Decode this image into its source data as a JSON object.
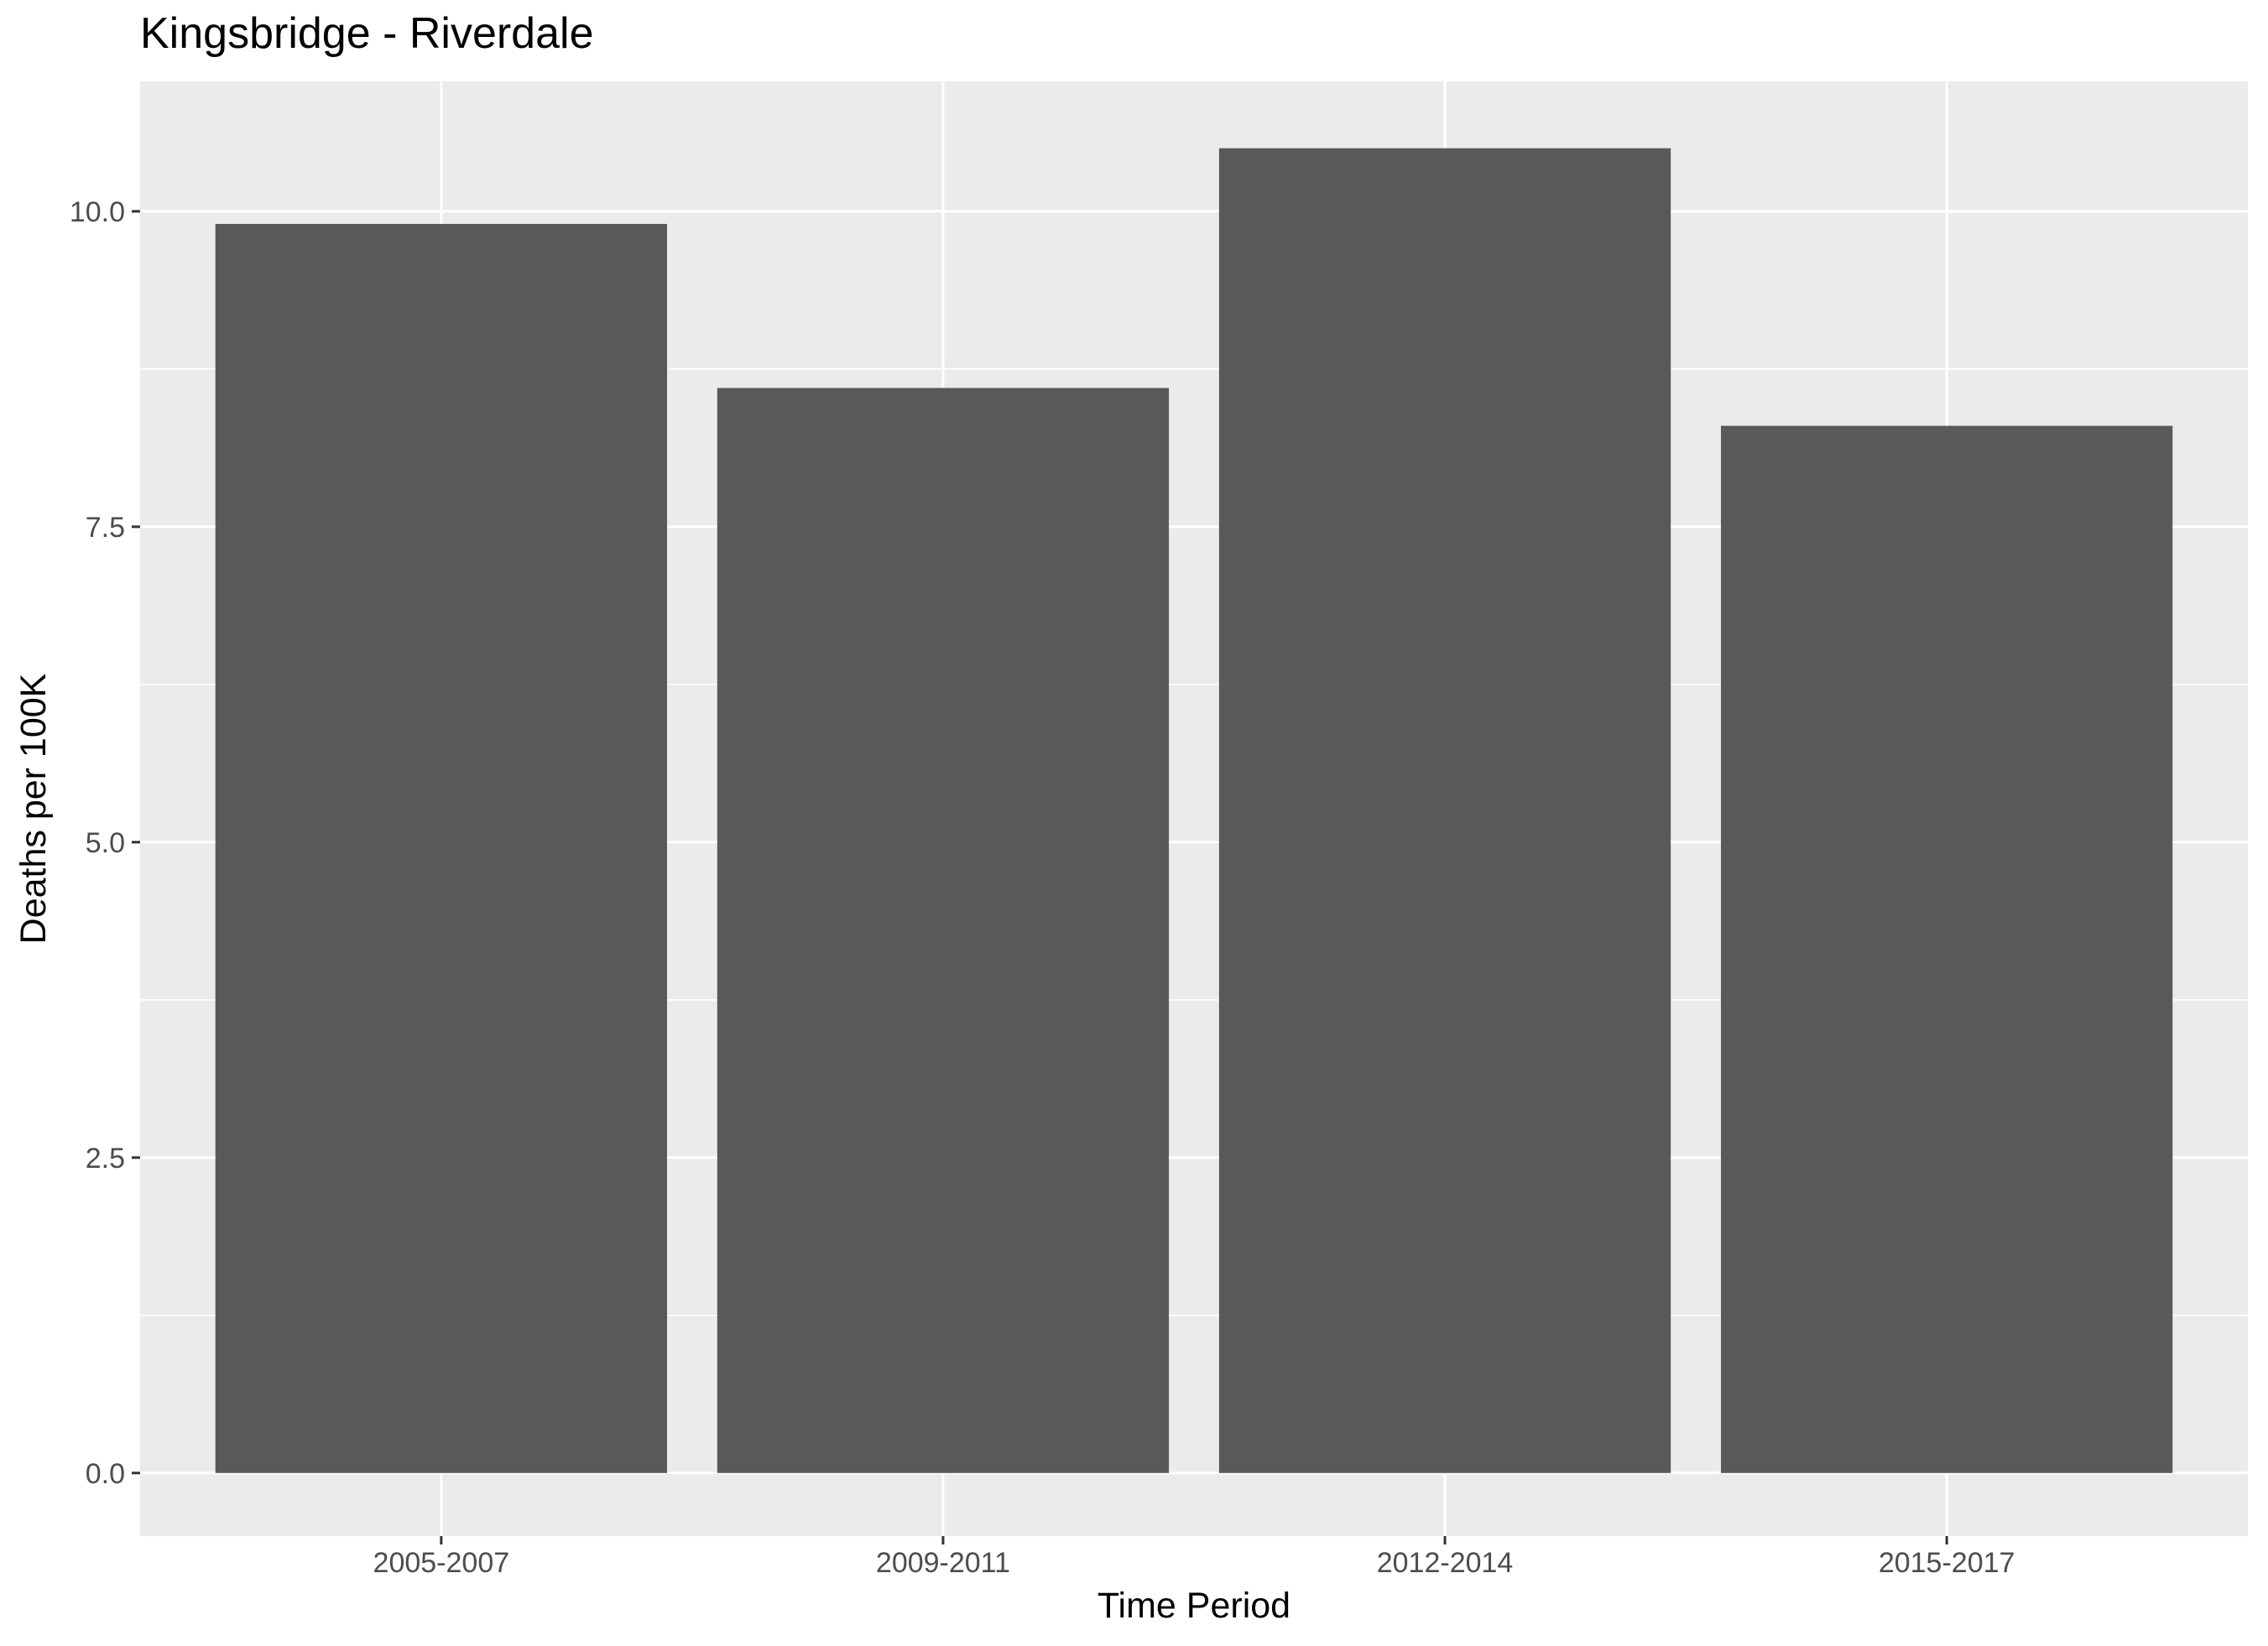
{
  "chart_data": {
    "type": "bar",
    "title": "Kingsbridge - Riverdale",
    "xlabel": "Time Period",
    "ylabel": "Deaths per 100K",
    "categories": [
      "2005-2007",
      "2009-2011",
      "2012-2014",
      "2015-2017"
    ],
    "values": [
      9.9,
      8.6,
      10.5,
      8.3
    ],
    "ylim": [
      -0.5,
      11.03
    ],
    "yticks": [
      0,
      2.5,
      5,
      7.5,
      10
    ],
    "ytick_labels": [
      "0.0",
      "2.5",
      "5.0",
      "7.5",
      "10.0"
    ],
    "grid": true,
    "legend": "none",
    "colors": {
      "bar": "#595959",
      "panel": "#ebebeb",
      "grid": "#ffffff",
      "tick_text": "#4d4d4d",
      "tick_mark": "#333333"
    }
  }
}
